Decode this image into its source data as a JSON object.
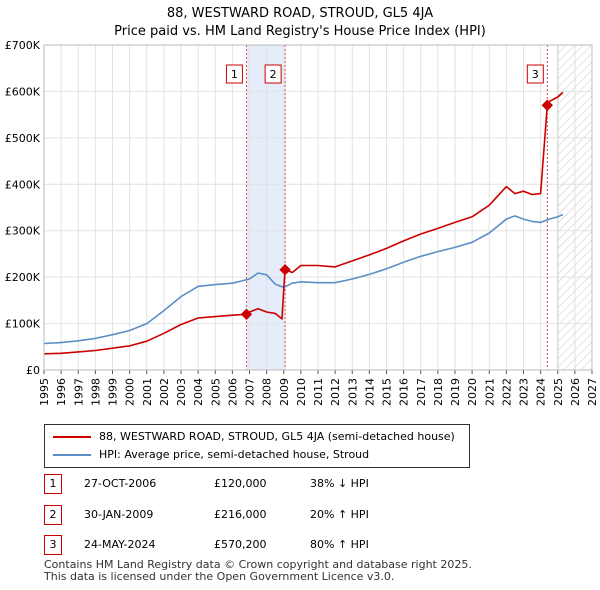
{
  "title_line1": "88, WESTWARD ROAD, STROUD, GL5 4JA",
  "title_line2": "Price paid vs. HM Land Registry's House Price Index (HPI)",
  "chart_data": {
    "type": "line",
    "x_range": [
      1995,
      2027
    ],
    "ylim": [
      0,
      700000
    ],
    "y_ticks": [
      {
        "value": 0,
        "label": "£0"
      },
      {
        "value": 100000,
        "label": "£100K"
      },
      {
        "value": 200000,
        "label": "£200K"
      },
      {
        "value": 300000,
        "label": "£300K"
      },
      {
        "value": 400000,
        "label": "£400K"
      },
      {
        "value": 500000,
        "label": "£500K"
      },
      {
        "value": 600000,
        "label": "£600K"
      },
      {
        "value": 700000,
        "label": "£700K"
      }
    ],
    "x_ticks": [
      "1995",
      "1996",
      "1997",
      "1998",
      "1999",
      "2000",
      "2001",
      "2002",
      "2003",
      "2004",
      "2005",
      "2006",
      "2007",
      "2008",
      "2009",
      "2010",
      "2011",
      "2012",
      "2013",
      "2014",
      "2015",
      "2016",
      "2017",
      "2018",
      "2019",
      "2020",
      "2021",
      "2022",
      "2023",
      "2024",
      "2025",
      "2026",
      "2027"
    ],
    "grid": true,
    "future_hatch_start": 2025.0,
    "shaded_period": [
      2006.82,
      2009.08
    ],
    "series": [
      {
        "name": "88, WESTWARD ROAD, STROUD, GL5 4JA (semi-detached house)",
        "color": "#cc0000",
        "x": [
          1995,
          1996,
          1997,
          1998,
          1999,
          2000,
          2001,
          2002,
          2003,
          2004,
          2005,
          2006,
          2006.82,
          2007,
          2007.5,
          2008,
          2008.5,
          2008.9,
          2009.0,
          2009.08,
          2009.5,
          2010,
          2011,
          2012,
          2013,
          2014,
          2015,
          2016,
          2017,
          2018,
          2019,
          2020,
          2021,
          2022,
          2022.5,
          2023,
          2023.5,
          2024.0,
          2024.39,
          2024.5,
          2025,
          2025.3
        ],
        "values": [
          35000,
          36000,
          39000,
          42000,
          47000,
          52000,
          62000,
          79000,
          98000,
          112000,
          115000,
          118000,
          120000,
          125000,
          132000,
          125000,
          122000,
          110000,
          175000,
          216000,
          210000,
          225000,
          225000,
          222000,
          235000,
          248000,
          262000,
          278000,
          293000,
          305000,
          318000,
          330000,
          355000,
          395000,
          380000,
          385000,
          378000,
          380000,
          570200,
          578000,
          588000,
          598000
        ]
      },
      {
        "name": "HPI: Average price, semi-detached house, Stroud",
        "color": "#5b8fc7",
        "x": [
          1995,
          1996,
          1997,
          1998,
          1999,
          2000,
          2001,
          2002,
          2003,
          2004,
          2005,
          2006,
          2007,
          2007.5,
          2008,
          2008.5,
          2009,
          2009.5,
          2010,
          2011,
          2012,
          2013,
          2014,
          2015,
          2016,
          2017,
          2018,
          2019,
          2020,
          2021,
          2022,
          2022.5,
          2023,
          2023.5,
          2024,
          2024.5,
          2025,
          2025.3
        ],
        "values": [
          57000,
          59000,
          63000,
          68000,
          76000,
          85000,
          100000,
          128000,
          158000,
          180000,
          184000,
          187000,
          196000,
          209000,
          205000,
          185000,
          178000,
          187000,
          190000,
          188000,
          188000,
          196000,
          206000,
          218000,
          232000,
          245000,
          255000,
          264000,
          275000,
          295000,
          325000,
          332000,
          325000,
          320000,
          318000,
          325000,
          330000,
          335000
        ]
      }
    ],
    "transactions": [
      {
        "num": "1",
        "date": "27-OCT-2006",
        "price": "£120,000",
        "hpi": "38% ↓ HPI",
        "year": 2006.82,
        "value": 120000
      },
      {
        "num": "2",
        "date": "30-JAN-2009",
        "price": "£216,000",
        "hpi": "20% ↑ HPI",
        "year": 2009.08,
        "value": 216000
      },
      {
        "num": "3",
        "date": "24-MAY-2024",
        "price": "£570,200",
        "hpi": "80% ↑ HPI",
        "year": 2024.39,
        "value": 570200
      }
    ]
  },
  "legend": {
    "price_label": "88, WESTWARD ROAD, STROUD, GL5 4JA (semi-detached house)",
    "hpi_label": "HPI: Average price, semi-detached house, Stroud",
    "price_color": "#cc0000",
    "hpi_color": "#5b8fc7"
  },
  "footer": {
    "line1": "Contains HM Land Registry data © Crown copyright and database right 2025.",
    "line2": "This data is licensed under the Open Government Licence v3.0."
  }
}
